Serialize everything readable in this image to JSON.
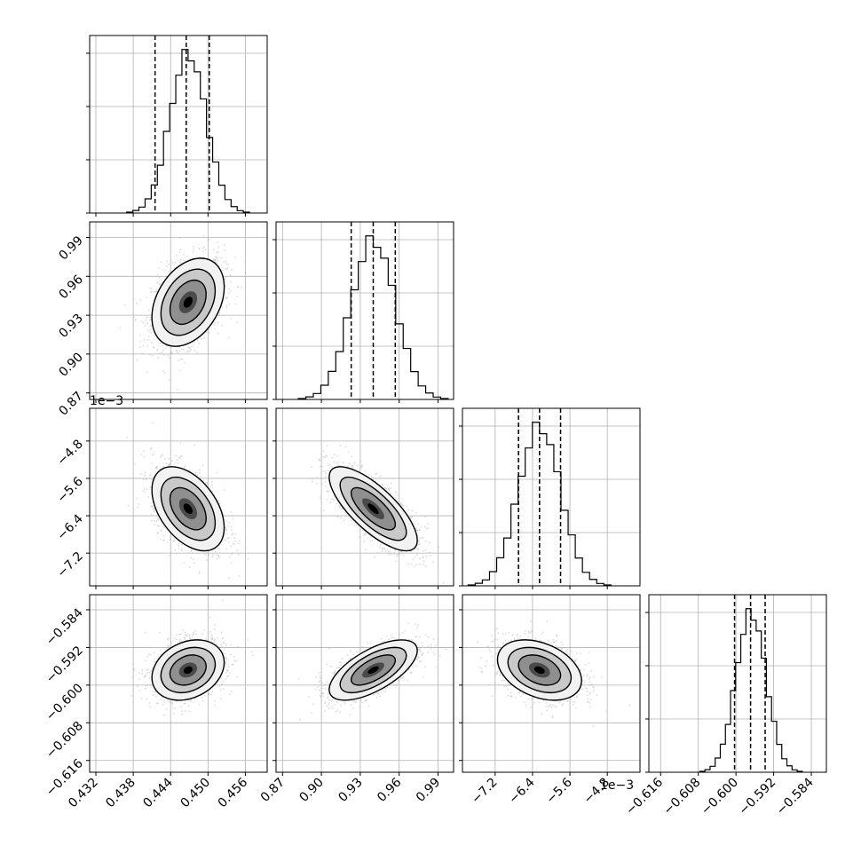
{
  "chart_data": {
    "type": "corner",
    "description_of_layout": "",
    "parameters": [
      {
        "range": [
          0.431,
          0.4595
        ],
        "ticks": [
          "0.432",
          "0.438",
          "0.444",
          "0.450",
          "0.456"
        ],
        "tick_values": [
          0.432,
          0.438,
          0.444,
          0.45,
          0.456
        ],
        "offset_label": "",
        "quantiles": [
          0.4415,
          0.4465,
          0.4502
        ],
        "mean": 0.4468,
        "std": 0.0029
      },
      {
        "range": [
          0.865,
          1.002
        ],
        "ticks": [
          "0.87",
          "0.90",
          "0.93",
          "0.96",
          "0.99"
        ],
        "tick_values": [
          0.87,
          0.9,
          0.93,
          0.96,
          0.99
        ],
        "offset_label": "",
        "quantiles": [
          0.923,
          0.94,
          0.957
        ],
        "mean": 0.94,
        "std": 0.017
      },
      {
        "range": [
          -7.9,
          -4.1
        ],
        "ticks": [
          "−7.2",
          "−6.4",
          "−5.6",
          "−4.8"
        ],
        "tick_values": [
          -7.2,
          -6.4,
          -5.6,
          -4.8
        ],
        "offset_label": "1e−3",
        "quantiles": [
          -6.7,
          -6.25,
          -5.8
        ],
        "mean": -6.25,
        "std": 0.45
      },
      {
        "range": [
          -0.6185,
          -0.5808
        ],
        "ticks": [
          "−0.616",
          "−0.608",
          "−0.600",
          "−0.592",
          "−0.584"
        ],
        "tick_values": [
          -0.616,
          -0.608,
          -0.6,
          -0.592,
          -0.584
        ],
        "offset_label": "",
        "quantiles": [
          -0.6003,
          -0.5969,
          -0.5938
        ],
        "mean": -0.5968,
        "std": 0.0032
      }
    ],
    "correlations": [
      [
        1,
        0.35,
        -0.45,
        0.25
      ],
      [
        0.35,
        1,
        -0.75,
        0.65
      ],
      [
        -0.45,
        -0.75,
        1,
        -0.35
      ],
      [
        0.25,
        0.65,
        -0.35,
        1
      ]
    ],
    "histogram_bins": 20,
    "contour_levels_sigma": [
      0.5,
      1.0,
      1.5,
      2.0
    ],
    "offset_labels": [
      {
        "text": "1e−3",
        "position": "top-left of row 2 y-axis"
      },
      {
        "text": "1e−3",
        "position": "bottom-right of column 3 x-axis"
      }
    ],
    "grid": true,
    "legend": "none",
    "colors": {
      "ink": "#000000",
      "grid": "#b0b0b0",
      "scatter": "#bdbdbd",
      "frame": "#000000"
    }
  }
}
